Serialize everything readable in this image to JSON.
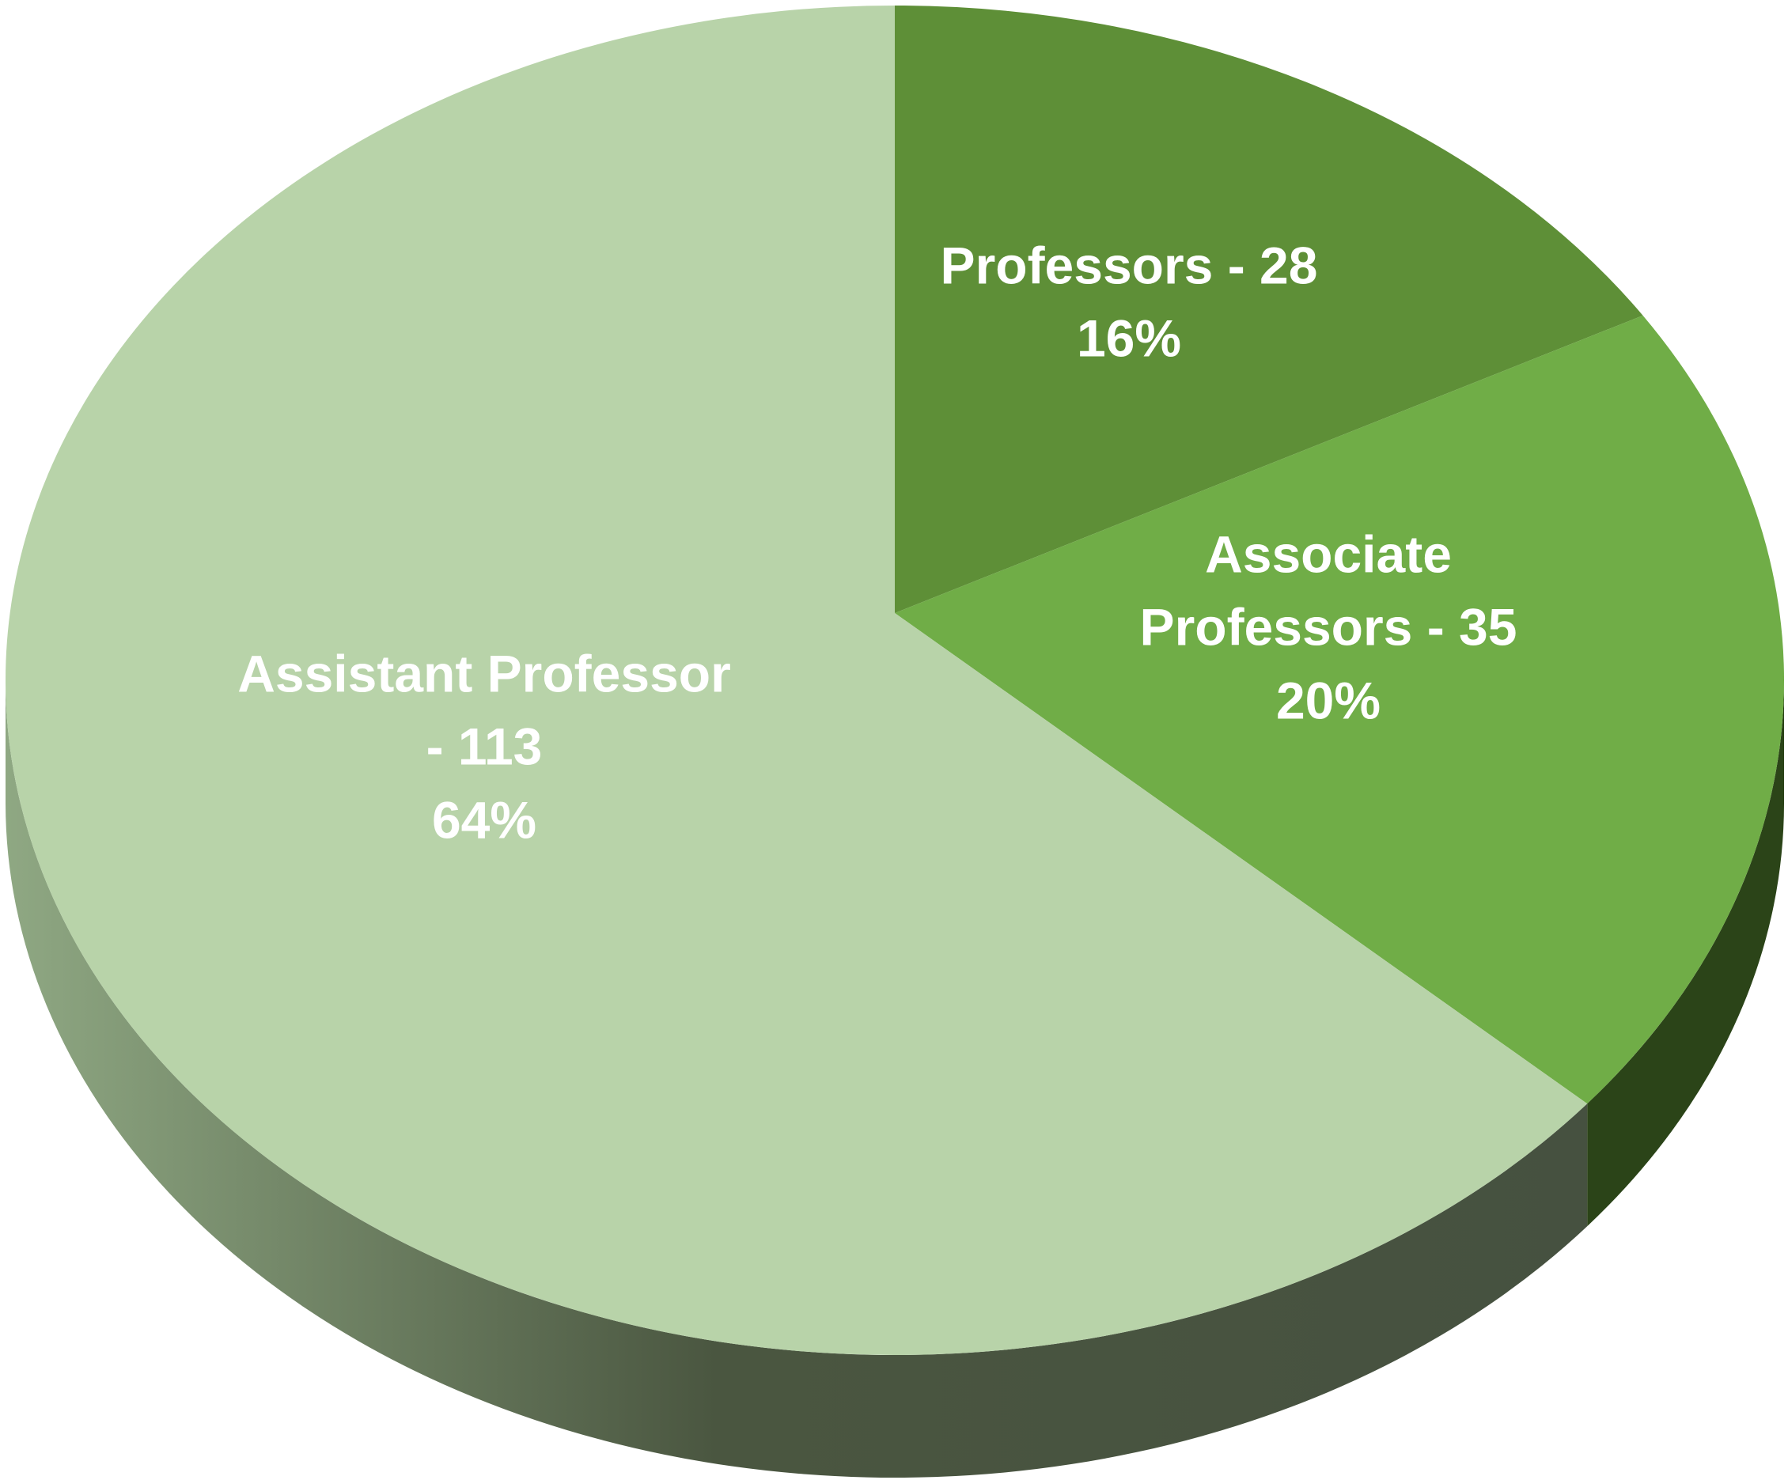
{
  "chart_data": {
    "type": "pie",
    "values": [
      28,
      35,
      113
    ],
    "value_labels": [
      "Professors - 28",
      "Associate Professors - 35",
      "Assistant Professor - 113"
    ],
    "percent_labels": [
      "16%",
      "20%",
      "64%"
    ],
    "colors": [
      "#5e8f37",
      "#70ad47",
      "#b8d3a9"
    ]
  }
}
